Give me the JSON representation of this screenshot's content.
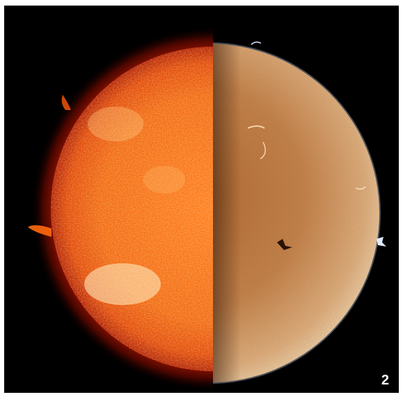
{
  "figure_number": "2",
  "image": {
    "subject": "sun-split-view",
    "left_half_color": "#f05a0a",
    "right_half_color": "#c8844a",
    "background_color": "#000000"
  }
}
